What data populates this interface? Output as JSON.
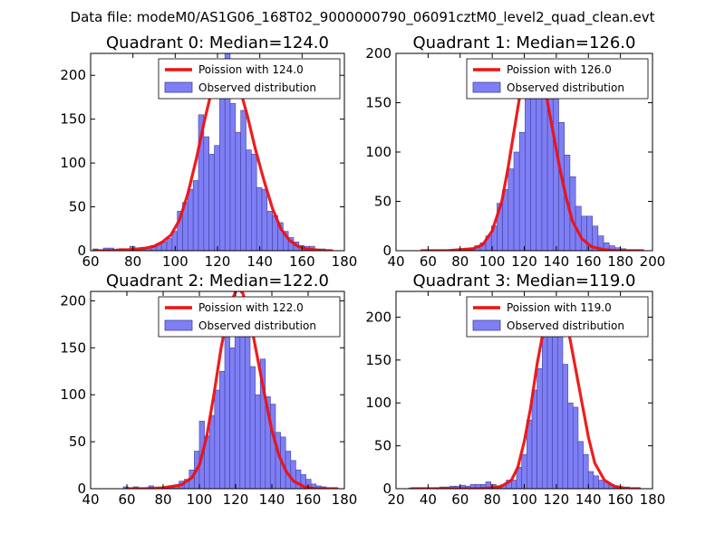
{
  "figure": {
    "suptitle": "Data file: modeM0/AS1G06_168T02_9000000790_06091cztM0_level2_quad_clean.evt"
  },
  "colors": {
    "bar_fill": "#7f7ff5",
    "bar_edge": "#4040a0",
    "curve": "#ee1111",
    "curve_peak": "#ff8888",
    "axis": "#000000",
    "legend_edge": "#000000",
    "background": "#ffffff"
  },
  "chart_data": [
    {
      "type": "bar",
      "title": "Quadrant 0: Median=124.0",
      "xlim": [
        60,
        180
      ],
      "ylim": [
        0,
        225
      ],
      "xticks": [
        60,
        80,
        100,
        120,
        140,
        160,
        180
      ],
      "yticks": [
        0,
        50,
        100,
        150,
        200
      ],
      "bin_width": 2.5,
      "legend": {
        "position": "top-right",
        "entries": [
          "Poission with 124.0",
          "Observed distribution"
        ]
      },
      "observed_distribution": {
        "bin_starts": [
          61,
          63.5,
          66,
          68.5,
          71,
          73.5,
          76,
          78.5,
          81,
          83.5,
          86,
          88.5,
          91,
          93.5,
          96,
          98.5,
          101,
          103.5,
          106,
          108.5,
          111,
          113.5,
          116,
          118.5,
          121,
          123.5,
          126,
          128.5,
          131,
          133.5,
          136,
          138.5,
          141,
          143.5,
          146,
          148.5,
          151,
          153.5,
          156,
          158.5,
          161,
          163.5,
          166,
          168.5,
          171
        ],
        "counts": [
          2,
          0,
          3,
          3,
          0,
          2,
          0,
          5,
          0,
          2,
          3,
          6,
          8,
          10,
          14,
          22,
          45,
          55,
          70,
          80,
          155,
          130,
          110,
          120,
          210,
          225,
          168,
          135,
          160,
          115,
          110,
          72,
          70,
          45,
          40,
          32,
          22,
          15,
          10,
          6,
          5,
          5,
          2,
          2,
          1
        ]
      },
      "poisson_fit": {
        "label": "Poission with 124.0",
        "lambda": 124.0,
        "x": [
          62,
          66,
          70,
          74,
          78,
          82,
          86,
          90,
          94,
          98,
          102,
          106,
          110,
          114,
          118,
          120,
          122,
          124,
          126,
          128,
          130,
          134,
          138,
          142,
          146,
          150,
          154,
          158,
          162,
          166,
          170,
          174
        ],
        "y": [
          0,
          0,
          0,
          1,
          1,
          2,
          3,
          5,
          10,
          18,
          35,
          65,
          105,
          150,
          190,
          205,
          213,
          215,
          212,
          205,
          190,
          155,
          115,
          80,
          48,
          25,
          12,
          5,
          2,
          1,
          0,
          0
        ]
      }
    },
    {
      "type": "bar",
      "title": "Quadrant 1: Median=126.0",
      "xlim": [
        40,
        200
      ],
      "ylim": [
        0,
        200
      ],
      "xticks": [
        40,
        60,
        80,
        100,
        120,
        140,
        160,
        180,
        200
      ],
      "yticks": [
        0,
        50,
        100,
        150,
        200
      ],
      "bin_width": 3.5,
      "legend": {
        "position": "top-right",
        "entries": [
          "Poission with 126.0",
          "Observed distribution"
        ]
      },
      "observed_distribution": {
        "bin_starts": [
          54,
          57.5,
          61,
          64.5,
          68,
          71.5,
          75,
          78.5,
          82,
          85.5,
          89,
          92.5,
          96,
          99.5,
          103,
          106.5,
          110,
          113.5,
          117,
          120.5,
          124,
          127.5,
          131,
          134.5,
          138,
          141.5,
          145,
          148.5,
          152,
          155.5,
          159,
          162.5,
          166,
          169.5,
          173,
          176.5,
          180,
          183.5,
          187,
          190.5
        ],
        "counts": [
          0,
          1,
          0,
          0,
          0,
          1,
          0,
          1,
          2,
          3,
          5,
          8,
          15,
          25,
          48,
          62,
          83,
          100,
          120,
          165,
          175,
          192,
          180,
          160,
          160,
          130,
          97,
          75,
          45,
          35,
          35,
          25,
          15,
          8,
          5,
          3,
          2,
          1,
          1,
          0
        ]
      },
      "poisson_fit": {
        "label": "Poission with 126.0",
        "lambda": 126.0,
        "x": [
          56,
          64,
          72,
          80,
          88,
          94,
          100,
          106,
          110,
          114,
          118,
          122,
          126,
          130,
          134,
          138,
          142,
          146,
          150,
          156,
          162,
          170,
          178,
          186,
          194
        ],
        "y": [
          0,
          0,
          0,
          1,
          2,
          6,
          20,
          50,
          85,
          125,
          165,
          185,
          190,
          180,
          155,
          120,
          85,
          55,
          30,
          12,
          4,
          1,
          0,
          0,
          0
        ]
      }
    },
    {
      "type": "bar",
      "title": "Quadrant 2: Median=122.0",
      "xlim": [
        40,
        180
      ],
      "ylim": [
        0,
        210
      ],
      "xticks": [
        40,
        60,
        80,
        100,
        120,
        140,
        160,
        180
      ],
      "yticks": [
        0,
        50,
        100,
        150,
        200
      ],
      "bin_width": 2.8,
      "legend": {
        "position": "top-right",
        "entries": [
          "Poission with 122.0",
          "Observed distribution"
        ]
      },
      "observed_distribution": {
        "bin_starts": [
          58,
          60.8,
          63.6,
          66.4,
          69.2,
          72,
          74.8,
          77.6,
          80.4,
          83.2,
          86,
          88.8,
          91.6,
          94.4,
          97.2,
          100,
          102.8,
          105.6,
          108.4,
          111.2,
          114,
          116.8,
          119.6,
          122.4,
          125.2,
          128,
          130.8,
          133.6,
          136.4,
          139.2,
          142,
          144.8,
          147.6,
          150.4,
          153.2,
          156,
          158.8,
          161.6,
          164.4,
          167.2,
          170
        ],
        "counts": [
          2,
          0,
          2,
          0,
          0,
          3,
          0,
          1,
          2,
          3,
          4,
          8,
          10,
          20,
          40,
          72,
          56,
          78,
          105,
          125,
          170,
          150,
          165,
          200,
          200,
          130,
          100,
          138,
          98,
          90,
          60,
          55,
          40,
          30,
          20,
          15,
          10,
          5,
          3,
          2,
          1
        ]
      },
      "poisson_fit": {
        "label": "Poission with 122.0",
        "lambda": 122.0,
        "x": [
          60,
          70,
          80,
          90,
          96,
          100,
          104,
          108,
          112,
          116,
          120,
          122,
          124,
          128,
          132,
          136,
          140,
          144,
          148,
          152,
          158,
          164,
          170,
          176
        ],
        "y": [
          0,
          0,
          1,
          4,
          12,
          25,
          55,
          100,
          150,
          190,
          210,
          212,
          208,
          180,
          140,
          100,
          62,
          35,
          18,
          8,
          2,
          0,
          0,
          0
        ]
      }
    },
    {
      "type": "bar",
      "title": "Quadrant 3: Median=119.0",
      "xlim": [
        20,
        180
      ],
      "ylim": [
        0,
        230
      ],
      "xticks": [
        20,
        40,
        60,
        80,
        100,
        120,
        140,
        160,
        180
      ],
      "yticks": [
        0,
        50,
        100,
        150,
        200
      ],
      "bin_width": 3.2,
      "legend": {
        "position": "top-right",
        "entries": [
          "Poission with 119.0",
          "Observed distribution"
        ]
      },
      "observed_distribution": {
        "bin_starts": [
          28,
          31.2,
          34.4,
          37.6,
          40.8,
          44,
          47.2,
          50.4,
          53.6,
          56.8,
          60,
          63.2,
          66.4,
          69.6,
          72.8,
          76,
          79.2,
          82.4,
          85.6,
          88.8,
          92,
          95.2,
          98.4,
          101.6,
          104.8,
          108,
          111.2,
          114.4,
          117.6,
          120.8,
          124,
          127.2,
          130.4,
          133.6,
          136.8,
          140,
          143.2,
          146.4,
          149.6,
          152.8,
          156,
          159.2,
          162.4,
          165.6
        ],
        "counts": [
          1,
          0,
          1,
          1,
          0,
          1,
          2,
          2,
          3,
          3,
          4,
          3,
          5,
          5,
          5,
          8,
          5,
          3,
          5,
          10,
          10,
          25,
          40,
          80,
          115,
          140,
          180,
          200,
          195,
          210,
          145,
          100,
          95,
          55,
          40,
          20,
          15,
          10,
          8,
          5,
          3,
          2,
          2,
          0
        ]
      },
      "poisson_fit": {
        "label": "Poission with 119.0",
        "lambda": 119.0,
        "x": [
          30,
          40,
          50,
          60,
          70,
          80,
          86,
          92,
          96,
          100,
          104,
          108,
          112,
          116,
          120,
          124,
          128,
          132,
          136,
          140,
          144,
          150,
          156,
          164,
          172
        ],
        "y": [
          0,
          0,
          0,
          0,
          0,
          1,
          3,
          10,
          25,
          55,
          95,
          145,
          185,
          210,
          218,
          210,
          180,
          140,
          100,
          60,
          30,
          10,
          3,
          0,
          0
        ]
      }
    }
  ]
}
